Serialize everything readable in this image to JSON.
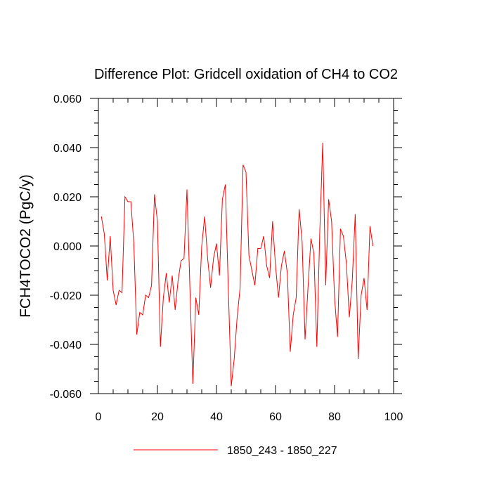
{
  "chart_data": {
    "type": "line",
    "title": "Difference Plot: Gridcell oxidation of CH4 to CO2",
    "xlabel": "",
    "ylabel": "FCH4TOCO2  (PgC/y)",
    "xlim": [
      0,
      100
    ],
    "ylim": [
      -0.06,
      0.06
    ],
    "x_ticks": [
      0,
      20,
      40,
      60,
      80,
      100
    ],
    "x_tick_labels": [
      "0",
      "20",
      "40",
      "60",
      "80",
      "100"
    ],
    "y_ticks": [
      -0.06,
      -0.04,
      -0.02,
      0.0,
      0.02,
      0.04,
      0.06
    ],
    "y_tick_labels": [
      "-0.060",
      "-0.040",
      "-0.020",
      "0.000",
      "0.020",
      "0.040",
      "0.060"
    ],
    "grid": false,
    "legend_position": "bottom-center",
    "series": [
      {
        "name": "1850_243 - 1850_227",
        "color": "#ff0000",
        "x": [
          1,
          2,
          3,
          4,
          5,
          6,
          7,
          8,
          9,
          10,
          11,
          12,
          13,
          14,
          15,
          16,
          17,
          18,
          19,
          20,
          21,
          22,
          23,
          24,
          25,
          26,
          27,
          28,
          29,
          30,
          31,
          32,
          33,
          34,
          35,
          36,
          37,
          38,
          39,
          40,
          41,
          42,
          43,
          44,
          45,
          46,
          47,
          48,
          49,
          50,
          51,
          52,
          53,
          54,
          55,
          56,
          57,
          58,
          59,
          60,
          61,
          62,
          63,
          64,
          65,
          66,
          67,
          68,
          69,
          70,
          71,
          72,
          73,
          74,
          75,
          76,
          77,
          78,
          79,
          80,
          81,
          82,
          83,
          84,
          85,
          86,
          87,
          88,
          89,
          90,
          91,
          92,
          93
        ],
        "values": [
          0.012,
          0.005,
          -0.014,
          0.004,
          -0.018,
          -0.024,
          -0.018,
          -0.019,
          0.02,
          0.018,
          0.018,
          0.001,
          -0.036,
          -0.027,
          -0.028,
          -0.02,
          -0.021,
          -0.016,
          0.021,
          0.01,
          -0.041,
          -0.021,
          -0.011,
          -0.023,
          -0.012,
          -0.026,
          -0.014,
          -0.006,
          -0.005,
          0.023,
          -0.017,
          -0.056,
          -0.021,
          -0.028,
          0.0,
          0.012,
          -0.005,
          -0.017,
          -0.005,
          0.001,
          -0.012,
          0.019,
          0.025,
          -0.017,
          -0.057,
          -0.046,
          -0.029,
          -0.017,
          0.033,
          0.03,
          -0.004,
          -0.01,
          -0.016,
          -0.001,
          -0.001,
          0.004,
          -0.008,
          -0.013,
          0.01,
          -0.008,
          -0.021,
          -0.008,
          -0.002,
          -0.011,
          -0.043,
          -0.028,
          -0.021,
          0.015,
          0.002,
          -0.038,
          -0.017,
          0.003,
          -0.003,
          -0.041,
          0.006,
          0.042,
          -0.016,
          0.019,
          0.01,
          -0.021,
          -0.037,
          0.007,
          0.004,
          -0.007,
          -0.029,
          -0.014,
          0.013,
          -0.046,
          -0.02,
          -0.013,
          -0.026,
          0.008,
          0.0
        ]
      }
    ]
  }
}
